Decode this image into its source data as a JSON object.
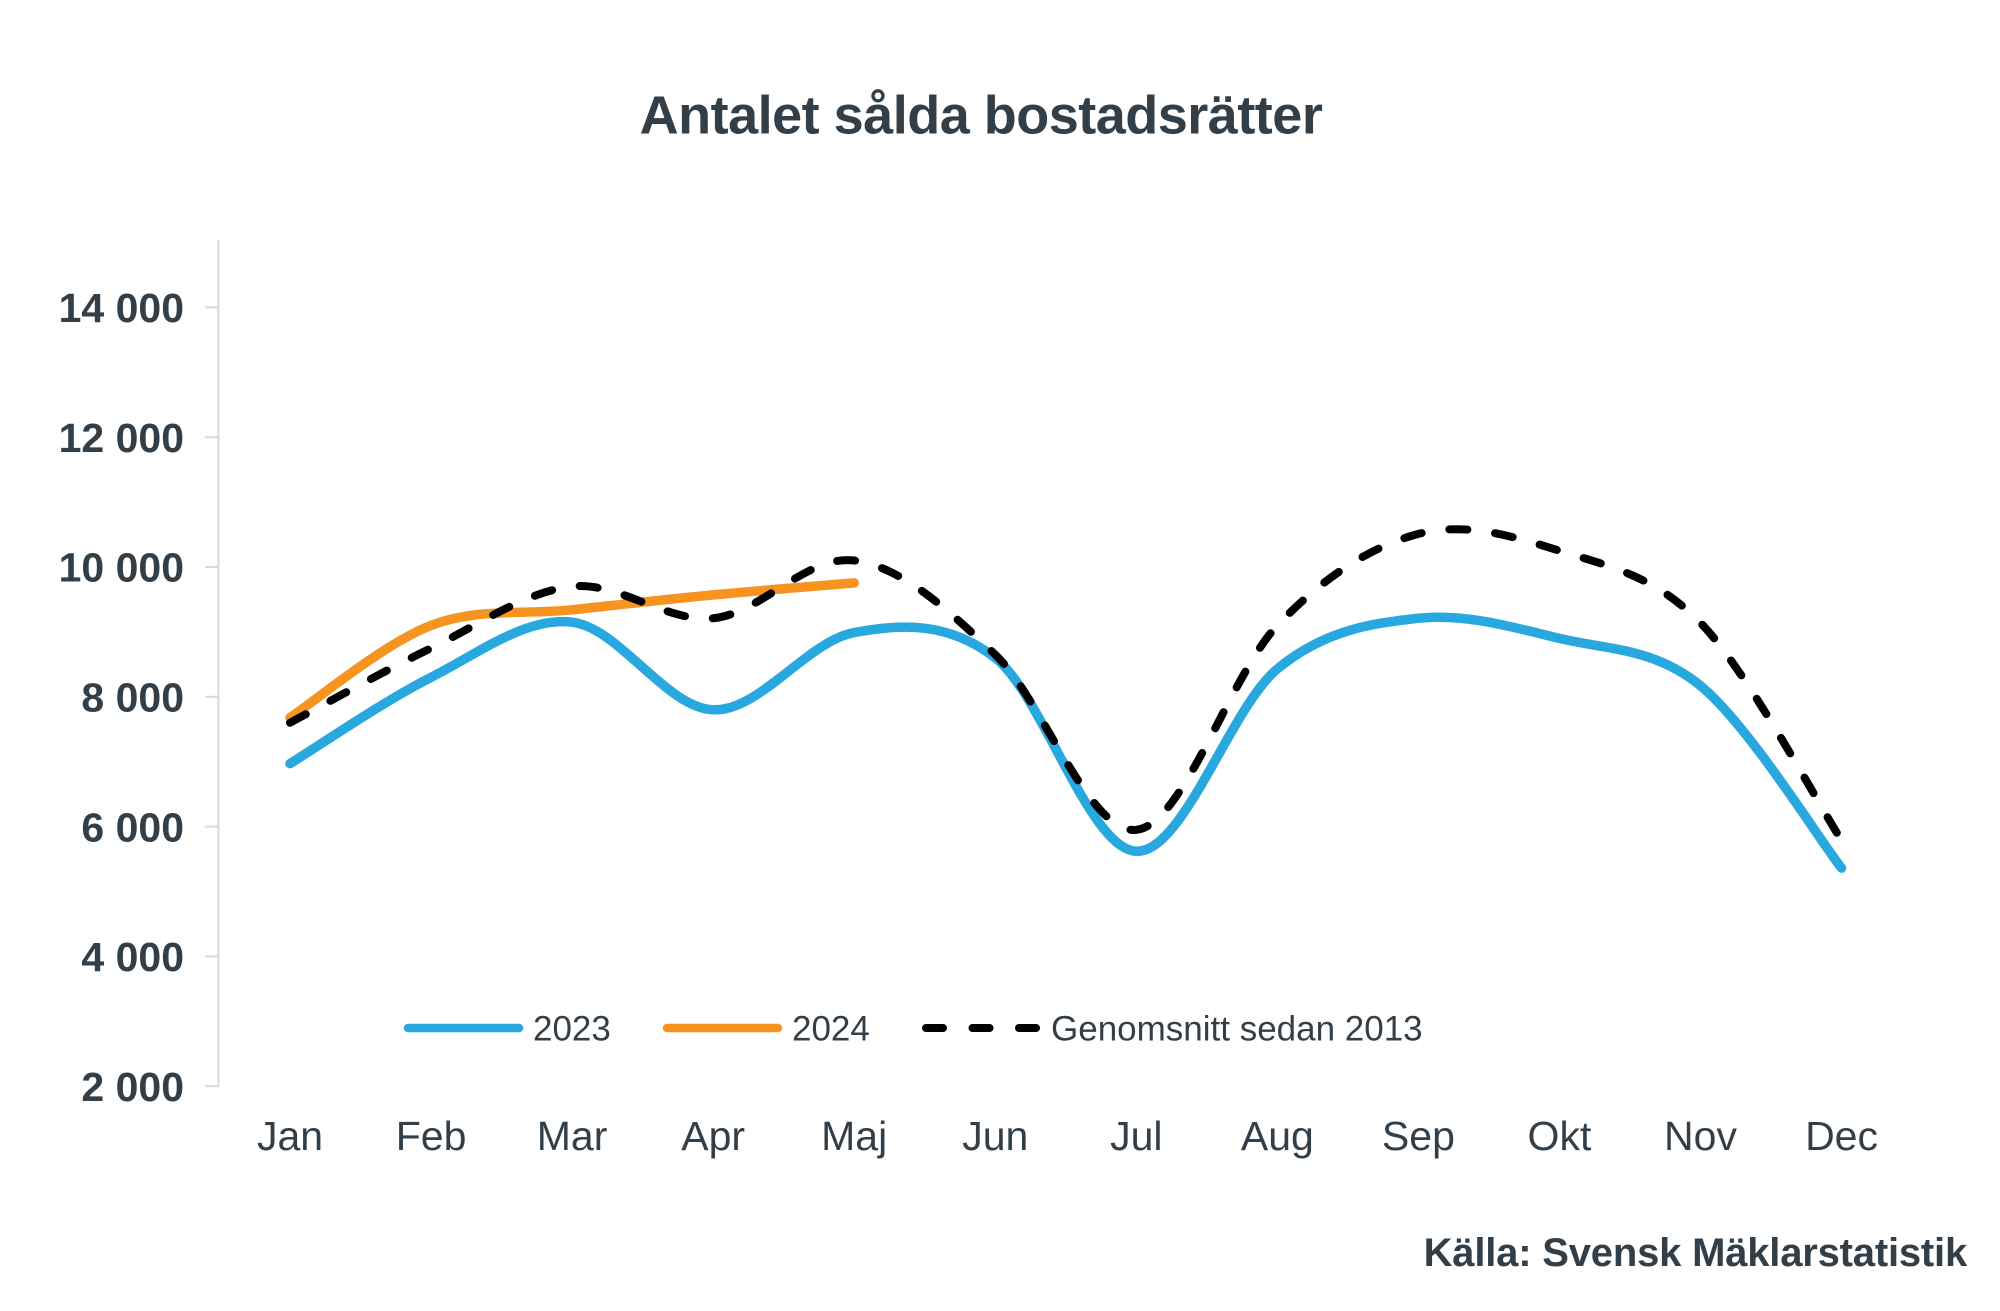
{
  "title": "Antalet sålda bostadsrätter",
  "source": "Källa: Svensk Mäklarstatistik",
  "colors": {
    "text": "#333F48",
    "axis": "#D9D9D9",
    "series_2023": "#29A8E0",
    "series_2024": "#F7941F",
    "series_average": "#000000"
  },
  "chart_data": {
    "type": "line",
    "smooth": true,
    "grid": false,
    "legend_position": "bottom-inside",
    "title": "Antalet sålda bostadsrätter",
    "xlabel": "",
    "ylabel": "",
    "ylim": [
      2000,
      14000
    ],
    "categories": [
      "Jan",
      "Feb",
      "Mar",
      "Apr",
      "Maj",
      "Jun",
      "Jul",
      "Aug",
      "Sep",
      "Okt",
      "Nov",
      "Dec"
    ],
    "y_ticks": [
      {
        "value": 2000,
        "label": "2 000"
      },
      {
        "value": 4000,
        "label": "4 000"
      },
      {
        "value": 6000,
        "label": "6 000"
      },
      {
        "value": 8000,
        "label": "8 000"
      },
      {
        "value": 10000,
        "label": "10 000"
      },
      {
        "value": 12000,
        "label": "12 000"
      },
      {
        "value": 14000,
        "label": "14 000"
      }
    ],
    "series": [
      {
        "name": "2023",
        "color": "#29A8E0",
        "style": "solid",
        "values": [
          6970,
          8300,
          9150,
          7800,
          8990,
          8600,
          5620,
          8430,
          9210,
          8900,
          8170,
          5360
        ]
      },
      {
        "name": "2024",
        "color": "#F7941F",
        "style": "solid",
        "values": [
          7680,
          9100,
          9340,
          9570,
          9755
        ]
      },
      {
        "name": "Genomsnitt sedan 2013",
        "color": "#000000",
        "style": "dashed",
        "values": [
          7600,
          8750,
          9700,
          9210,
          10100,
          8650,
          5950,
          9100,
          10510,
          10250,
          9140,
          5790
        ]
      }
    ]
  }
}
